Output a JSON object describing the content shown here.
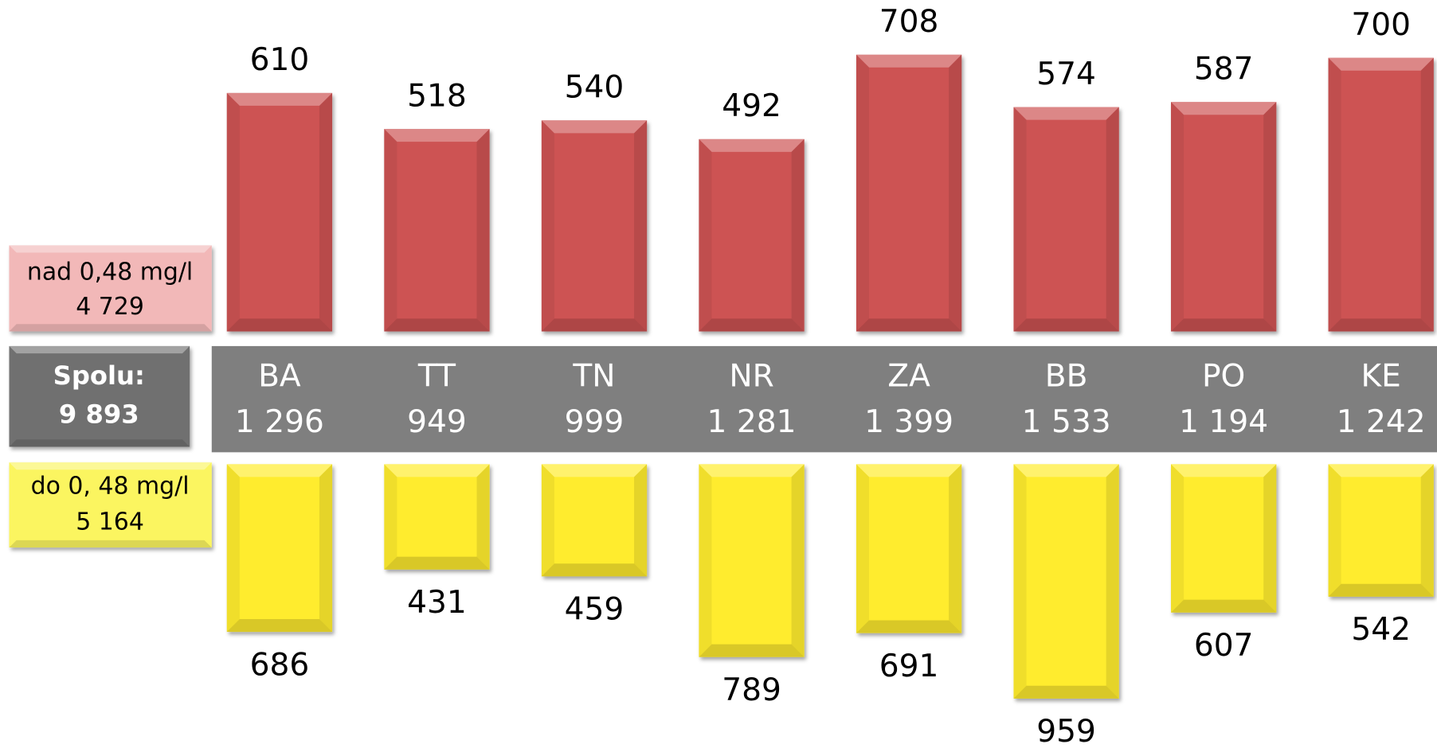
{
  "chart_data": {
    "type": "bar",
    "categories": [
      "BA",
      "TT",
      "TN",
      "NR",
      "ZA",
      "BB",
      "PO",
      "KE"
    ],
    "totals": [
      1296,
      949,
      999,
      1281,
      1399,
      1533,
      1194,
      1242
    ],
    "totals_value_labels": [
      "1 296",
      "949",
      "999",
      "1 281",
      "1 399",
      "1 533",
      "1 194",
      "1 242"
    ],
    "total_title": "Spolu:",
    "grand_total": 9893,
    "grand_total_label": "9 893",
    "total_color": "#7f7f7f",
    "series": [
      {
        "name": "nad 0,48 mg/l",
        "color": "#cd5353",
        "values": [
          610,
          518,
          540,
          492,
          708,
          574,
          587,
          700
        ],
        "total": 4729,
        "total_label": "4 729"
      },
      {
        "name": "do 0, 48 mg/l",
        "color": "#ffec2e",
        "values": [
          686,
          431,
          459,
          789,
          691,
          959,
          607,
          542
        ],
        "total": 5164,
        "total_label": "5 164"
      }
    ]
  }
}
